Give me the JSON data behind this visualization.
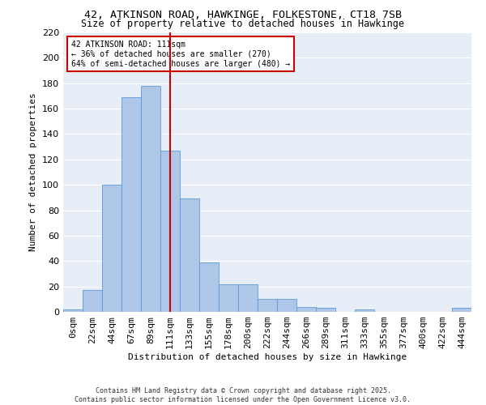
{
  "title_line1": "42, ATKINSON ROAD, HAWKINGE, FOLKESTONE, CT18 7SB",
  "title_line2": "Size of property relative to detached houses in Hawkinge",
  "xlabel": "Distribution of detached houses by size in Hawkinge",
  "ylabel": "Number of detached properties",
  "bar_color": "#aec6e8",
  "bar_edge_color": "#5b9bd5",
  "background_color": "#e8eef8",
  "grid_color": "#ffffff",
  "categories": [
    "0sqm",
    "22sqm",
    "44sqm",
    "67sqm",
    "89sqm",
    "111sqm",
    "133sqm",
    "155sqm",
    "178sqm",
    "200sqm",
    "222sqm",
    "244sqm",
    "266sqm",
    "289sqm",
    "311sqm",
    "333sqm",
    "355sqm",
    "377sqm",
    "400sqm",
    "422sqm",
    "444sqm"
  ],
  "values": [
    2,
    17,
    100,
    169,
    178,
    127,
    89,
    39,
    22,
    22,
    10,
    10,
    4,
    3,
    0,
    2,
    0,
    0,
    0,
    0,
    3
  ],
  "vline_x": 5,
  "vline_color": "#cc0000",
  "annotation_text": "42 ATKINSON ROAD: 111sqm\n← 36% of detached houses are smaller (270)\n64% of semi-detached houses are larger (480) →",
  "annotation_box_color": "white",
  "annotation_box_edge": "#cc0000",
  "ylim": [
    0,
    220
  ],
  "yticks": [
    0,
    20,
    40,
    60,
    80,
    100,
    120,
    140,
    160,
    180,
    200,
    220
  ],
  "footer_line1": "Contains HM Land Registry data © Crown copyright and database right 2025.",
  "footer_line2": "Contains public sector information licensed under the Open Government Licence v3.0."
}
